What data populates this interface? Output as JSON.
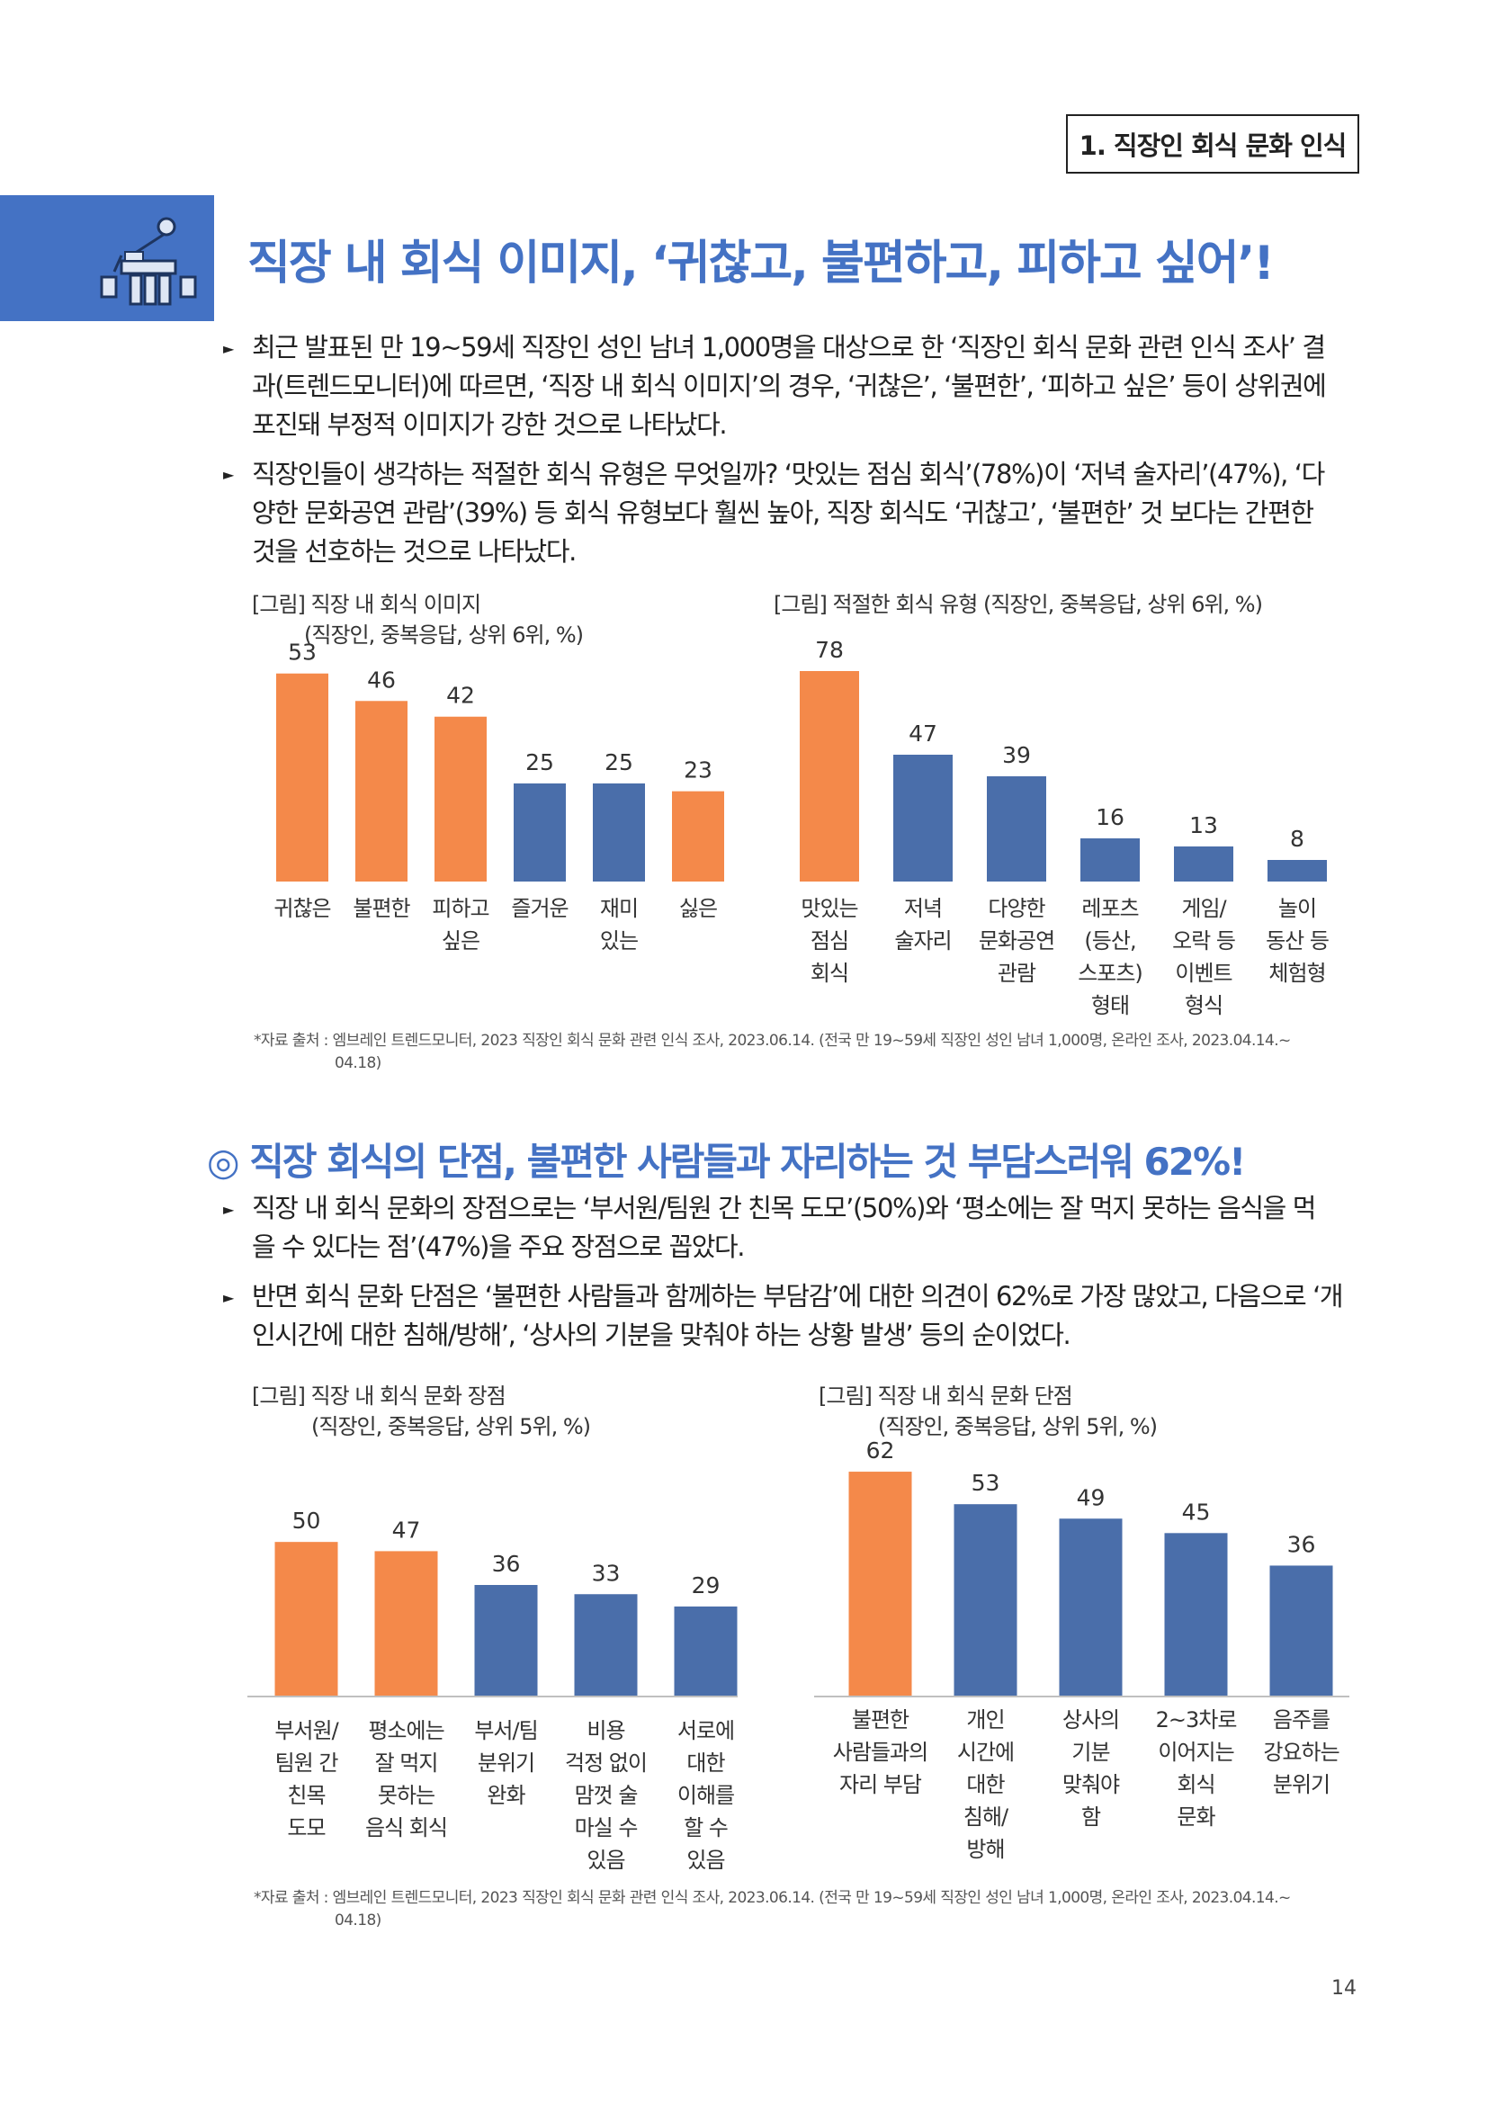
{
  "section_tag": "1. 직장인 회식 문화 인식",
  "main_title": "직장 내 회식 이미지, ‘귀찮고, 불편하고, 피하고 싶어’!",
  "paragraphs_top": [
    [
      "최근 발표된 만 19~59세 직장인 성인 남녀 1,000명을 대상으로 한 ‘직장인 회식 문화 관련 인식 조사’ 결",
      "과(트렌드모니터)에 따르면, ‘직장 내 회식 이미지’의 경우, ‘귀찮은’, ‘불편한’, ‘피하고 싶은’ 등이 상위권에",
      "포진돼 부정적 이미지가 강한 것으로 나타났다."
    ],
    [
      "직장인들이 생각하는 적절한 회식 유형은 무엇일까? ‘맛있는 점심 회식’(78%)이 ‘저녁 술자리’(47%), ‘다",
      "양한 문화공연 관람’(39%) 등 회식 유형보다 훨씬 높아, 직장 회식도 ‘귀찮고’, ‘불편한’ 것 보다는 간편한",
      "것을 선호하는 것으로 나타났다."
    ]
  ],
  "sub_title": "◎ 직장 회식의 단점, 불편한 사람들과 자리하는 것 부담스러워 62%!",
  "paragraphs_bottom": [
    [
      "직장 내 회식 문화의 장점으로는 ‘부서원/팀원 간 친목 도모’(50%)와 ‘평소에는 잘 먹지 못하는 음식을 먹",
      "을 수 있다는 점’(47%)을 주요 장점으로 꼽았다."
    ],
    [
      "반면 회식 문화 단점은 ‘불편한 사람들과 함께하는 부담감’에 대한 의견이 62%로 가장 많았고, 다음으로 ‘개",
      "인시간에 대한 침해/방해’, ‘상사의 기분을 맞춰야 하는 상황 발생’ 등의 순이었다."
    ]
  ],
  "source_note": {
    "line1": "*자료 출처 : 엠브레인 트렌드모니터, 2023 직장인 회식 문화 관련 인식 조사, 2023.06.14. (전국 만 19~59세 직장인 성인 남녀 1,000명, 온라인 조사, 2023.04.14.~",
    "line2": "04.18)"
  },
  "page_number": "14",
  "colors": {
    "accent": "#4472c4",
    "highlight": "#f4894a",
    "bar_blue": "#4a6eaa"
  },
  "header_icon": "office-meeting-icon",
  "chart_data": [
    {
      "type": "bar",
      "title": "[그림] 직장 내 회식 이미지",
      "subtitle": "(직장인, 중복응답, 상위 6위, %)",
      "categories": [
        [
          "귀찮은"
        ],
        [
          "불편한"
        ],
        [
          "피하고",
          "싶은"
        ],
        [
          "즐거운"
        ],
        [
          "재미",
          "있는"
        ],
        [
          "싫은"
        ]
      ],
      "values": [
        53,
        46,
        42,
        25,
        25,
        23
      ],
      "highlight": [
        true,
        true,
        true,
        false,
        false,
        true
      ],
      "ylim": [
        0,
        55
      ]
    },
    {
      "type": "bar",
      "title": "[그림] 적절한 회식 유형 (직장인, 중복응답, 상위 6위, %)",
      "subtitle": "",
      "categories": [
        [
          "맛있는",
          "점심",
          "회식"
        ],
        [
          "저녁",
          "술자리"
        ],
        [
          "다양한",
          "문화공연",
          "관람"
        ],
        [
          "레포츠",
          "(등산,",
          "스포츠)",
          "형태"
        ],
        [
          "게임/",
          "오락 등",
          "이벤트",
          "형식"
        ],
        [
          "놀이",
          "동산 등",
          "체험형"
        ]
      ],
      "values": [
        78,
        47,
        39,
        16,
        13,
        8
      ],
      "highlight": [
        true,
        false,
        false,
        false,
        false,
        false
      ],
      "ylim": [
        0,
        80
      ]
    },
    {
      "type": "bar",
      "title": "[그림] 직장 내 회식 문화 장점",
      "subtitle": "(직장인, 중복응답, 상위 5위, %)",
      "categories": [
        [
          "부서원/",
          "팀원 간",
          "친목",
          "도모"
        ],
        [
          "평소에는",
          "잘 먹지",
          "못하는",
          "음식 회식"
        ],
        [
          "부서/팀",
          "분위기",
          "완화"
        ],
        [
          "비용",
          "걱정 없이",
          "맘껏 술",
          "마실 수",
          "있음"
        ],
        [
          "서로에",
          "대한",
          "이해를",
          "할 수",
          "있음"
        ]
      ],
      "values": [
        50,
        47,
        36,
        33,
        29
      ],
      "highlight": [
        true,
        true,
        false,
        false,
        false
      ],
      "ylim": [
        0,
        60
      ]
    },
    {
      "type": "bar",
      "title": "[그림] 직장 내 회식 문화 단점",
      "subtitle": "(직장인, 중복응답, 상위 5위, %)",
      "categories": [
        [
          "불편한",
          "사람들과의",
          "자리 부담"
        ],
        [
          "개인",
          "시간에",
          "대한",
          "침해/",
          "방해"
        ],
        [
          "상사의",
          "기분",
          "맞춰야",
          "함"
        ],
        [
          "2~3차로",
          "이어지는",
          "회식",
          "문화"
        ],
        [
          "음주를",
          "강요하는",
          "분위기"
        ]
      ],
      "values": [
        62,
        53,
        49,
        45,
        36
      ],
      "highlight": [
        true,
        false,
        false,
        false,
        false
      ],
      "ylim": [
        0,
        66
      ]
    }
  ]
}
